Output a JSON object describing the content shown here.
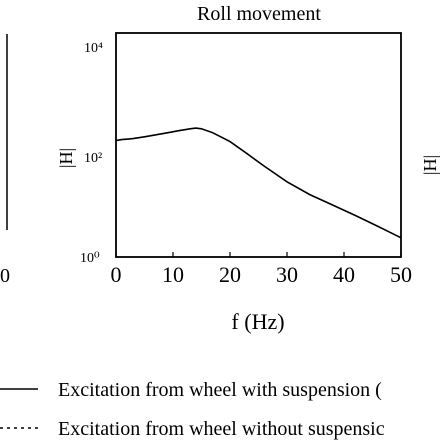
{
  "chart_data": {
    "type": "line",
    "title": "Roll movement",
    "xlabel": "f (Hz)",
    "ylabel": "|H|",
    "x_ticks": [
      "0",
      "10",
      "20",
      "30",
      "40",
      "50"
    ],
    "y_ticks": [
      "10⁰",
      "10²",
      "10⁴"
    ],
    "y_scale": "log",
    "xlim": [
      0,
      50
    ],
    "ylim": [
      1,
      10000
    ],
    "left_neighbor_x_tick": "0",
    "right_neighbor_ylabel": "|H|",
    "series": [
      {
        "name": "Excitation from wheel with suspension (",
        "style": "solid",
        "color": "#000000",
        "x": [
          0,
          1,
          3,
          5,
          7,
          9,
          11,
          13,
          14,
          15,
          17,
          20,
          23,
          26,
          30,
          34,
          38,
          42,
          46,
          50
        ],
        "y": [
          120,
          125,
          130,
          140,
          152,
          165,
          180,
          195,
          200,
          195,
          165,
          115,
          70,
          42,
          22,
          13,
          8.5,
          5.5,
          3.5,
          2.2
        ]
      }
    ],
    "legend": [
      {
        "label": "Excitation from wheel with suspension (",
        "style": "solid"
      },
      {
        "label": "Excitation from wheel without suspensic",
        "style": "dotted"
      }
    ],
    "legend_position": "bottom",
    "grid": false
  }
}
